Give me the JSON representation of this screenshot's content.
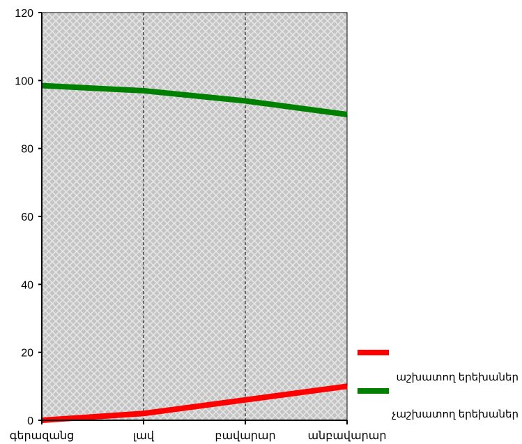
{
  "chart_data": {
    "type": "line",
    "title": "",
    "xlabel": "",
    "ylabel": "",
    "categories": [
      "գերազանց",
      "լավ",
      "բավարար",
      "անբավարար"
    ],
    "ylim": [
      0,
      120
    ],
    "yticks": [
      0,
      20,
      40,
      60,
      80,
      100,
      120
    ],
    "grid": "vertical dashed lines at categories",
    "plot_background": "gray crosshatch",
    "legend_position": "bottom-right",
    "series": [
      {
        "name": "աշխատող երեխաներ",
        "color": "#ff0000",
        "values": [
          0,
          2,
          6,
          10
        ]
      },
      {
        "name": "չաշխատող երեխաներ",
        "color": "#008000",
        "values": [
          98.5,
          97,
          94,
          90
        ]
      }
    ]
  }
}
